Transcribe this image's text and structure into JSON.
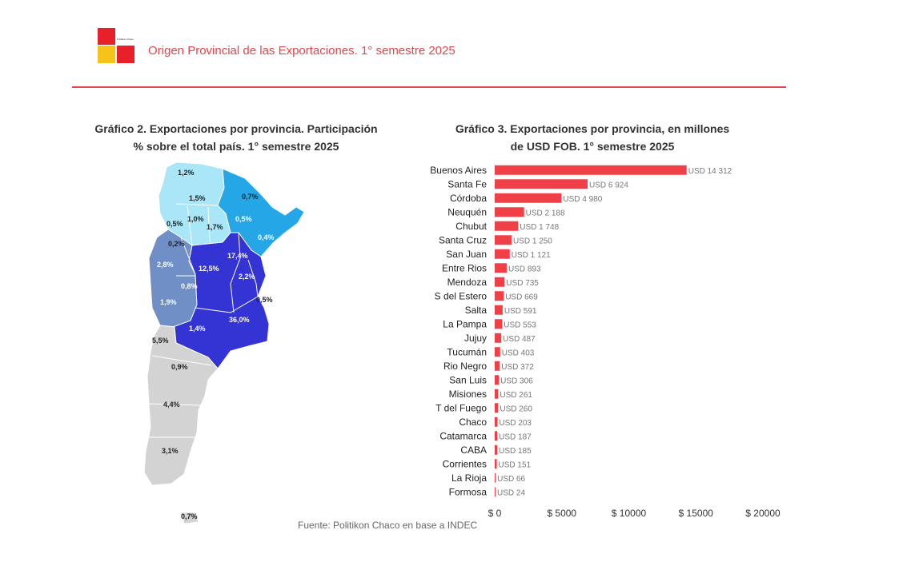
{
  "header": {
    "title": "Origen Provincial de las Exportaciones. 1° semestre 2025",
    "logo_text": "Politikon Chaco"
  },
  "colors": {
    "accent": "#e0474c",
    "logo_red": "#e8202a",
    "logo_yellow": "#f6c31a",
    "map_light": "#a8e6f8",
    "map_mid": "#25a6e6",
    "map_blue": "#3434d4",
    "map_steel": "#6f8fc6",
    "map_gray": "#d3d3d3",
    "bar": "#f04047"
  },
  "map_chart": {
    "title_line1": "Gráfico 2. Exportaciones por provincia. Participación",
    "title_line2": "% sobre el total país. 1° semestre 2025",
    "labels": [
      "1,2%",
      "1,5%",
      "0,7%",
      "1,0%",
      "0,5%",
      "1,7%",
      "0,5%",
      "0,4%",
      "0,2%",
      "12,5%",
      "17,4%",
      "2,8%",
      "0,8%",
      "2,2%",
      "1,9%",
      "0,5%",
      "1,4%",
      "36,0%",
      "5,5%",
      "0,9%",
      "4,4%",
      "3,1%",
      "0,7%"
    ]
  },
  "chart_data": {
    "type": "bar",
    "orientation": "horizontal",
    "title": "Gráfico 3. Exportaciones por provincia, en millones de USD FOB. 1° semestre 2025",
    "title_line1": "Gráfico 3. Exportaciones por provincia, en millones",
    "title_line2": "de USD FOB. 1° semestre 2025",
    "categories": [
      "Buenos Aires",
      "Santa Fe",
      "Córdoba",
      "Neuquén",
      "Chubut",
      "Santa Cruz",
      "San Juan",
      "Entre Rios",
      "Mendoza",
      "S del Estero",
      "Salta",
      "La Pampa",
      "Jujuy",
      "Tucumán",
      "Rio Negro",
      "San Luis",
      "Misiones",
      "T del Fuego",
      "Chaco",
      "Catamarca",
      "CABA",
      "Corrientes",
      "La Rioja",
      "Formosa"
    ],
    "values": [
      14312,
      6924,
      4980,
      2188,
      1748,
      1250,
      1121,
      893,
      735,
      669,
      591,
      553,
      487,
      403,
      372,
      306,
      261,
      260,
      203,
      187,
      185,
      151,
      66,
      24
    ],
    "data_labels": [
      "USD 14 312",
      "USD 6 924",
      "USD 4 980",
      "USD 2 188",
      "USD 1 748",
      "USD 1 250",
      "USD 1 121",
      "USD 893",
      "USD 735",
      "USD 669",
      "USD 591",
      "USD 553",
      "USD 487",
      "USD 403",
      "USD 372",
      "USD 306",
      "USD 261",
      "USD 260",
      "USD 203",
      "USD 187",
      "USD 185",
      "USD 151",
      "USD 66",
      "USD 24"
    ],
    "xlim": [
      0,
      20000
    ],
    "xticks": [
      0,
      5000,
      10000,
      15000,
      20000
    ],
    "xtick_labels": [
      "$ 0",
      "$ 5000",
      "$ 10000",
      "$ 15000",
      "$ 20000"
    ],
    "grid": false
  },
  "source": "Fuente: Politikon Chaco en base a INDEC"
}
